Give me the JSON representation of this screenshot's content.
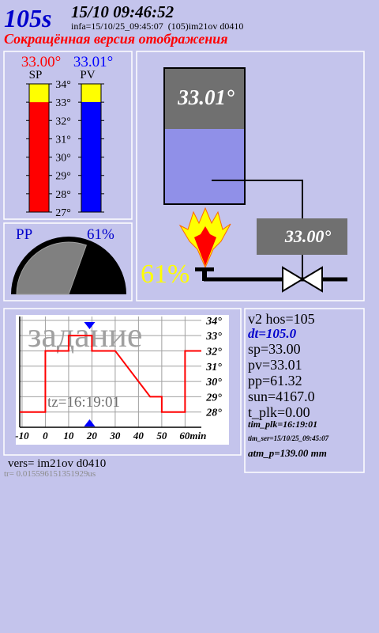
{
  "header": {
    "counter": "105s",
    "datetime": "15/10 09:46:52",
    "info": "infa=15/10/25_09:45:07  (105)im21ov d0410",
    "subtitle": "Сокращённая версия отображения"
  },
  "bars": {
    "ylim": [
      27,
      34
    ],
    "ticks": [
      {
        "value": 34,
        "label": "34°"
      },
      {
        "value": 33,
        "label": "33°"
      },
      {
        "value": 32,
        "label": "32°"
      },
      {
        "value": 31,
        "label": "31°"
      },
      {
        "value": 30,
        "label": "30°"
      },
      {
        "value": 29,
        "label": "29°"
      },
      {
        "value": 28,
        "label": "28°"
      },
      {
        "value": 27,
        "label": "27°"
      }
    ],
    "series": [
      {
        "name": "SP",
        "value": 33.0,
        "label": "33.00°",
        "color": "#ff0000"
      },
      {
        "name": "PV",
        "value": 33.01,
        "label": "33.01°",
        "color": "#0000ff"
      }
    ]
  },
  "gauge": {
    "name": "PP",
    "value": 61,
    "label": "61%"
  },
  "diagram": {
    "tank_label": "33.01°",
    "setpoint_label": "33.00°",
    "power_label": "61%"
  },
  "program_chart": {
    "type": "line",
    "watermark": "задание",
    "annotation": "tz=16:19:01",
    "x": [
      -11,
      0,
      0,
      10,
      10,
      20,
      20,
      30,
      45,
      50,
      50,
      60,
      60,
      67
    ],
    "values": [
      28,
      28,
      32,
      32,
      33,
      33,
      32,
      32,
      29,
      29,
      28,
      28,
      32,
      32
    ],
    "color": "#ff0000",
    "xlim": [
      -11,
      67
    ],
    "ylim": [
      27,
      34.25
    ],
    "xticks": [
      -10,
      0,
      10,
      20,
      30,
      40,
      50,
      {
        "value": 60,
        "label": "60min"
      }
    ],
    "yticks": [
      {
        "value": 34,
        "label": "34°"
      },
      {
        "value": 33,
        "label": "33°"
      },
      {
        "value": 32,
        "label": "32°"
      },
      {
        "value": 31,
        "label": "31°"
      },
      {
        "value": 30,
        "label": "30°"
      },
      {
        "value": 29,
        "label": "29°"
      },
      {
        "value": 28,
        "label": "28°"
      }
    ],
    "grid": true,
    "marker_x": 19
  },
  "footer": {
    "version": "vers= im21ov d0410",
    "timing": "tr= 0.015596151351929us"
  },
  "status": {
    "lines": [
      "v2 hos=105",
      "dt=105.0",
      "sp=33.00",
      "pv=33.01",
      "pp=61.32",
      "sun=4167.0",
      "t_plk=0.00",
      "tim_plk=16:19:01",
      "tim_ser=15/10/25_09:45:07",
      "atm_p=139.00 mm"
    ]
  }
}
